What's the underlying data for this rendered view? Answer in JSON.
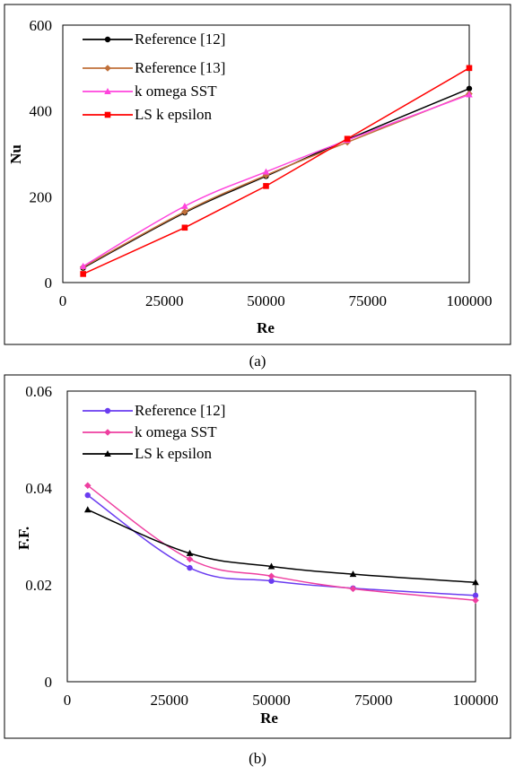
{
  "chart_data": [
    {
      "type": "line",
      "caption": "(a)",
      "xlabel": "Re",
      "ylabel": "Nu",
      "xlim": [
        0,
        100000
      ],
      "ylim": [
        0,
        600
      ],
      "xticks": [
        "0",
        "25000",
        "50000",
        "75000",
        "100000"
      ],
      "yticks": [
        "0",
        "200",
        "400",
        "600"
      ],
      "grid": false,
      "legend_position": "top-left",
      "series": [
        {
          "name": "Reference [12]",
          "color": "#000000",
          "marker": "circle",
          "x": [
            5000,
            30000,
            50000,
            70000,
            100000
          ],
          "y": [
            34,
            163,
            248,
            333,
            452
          ]
        },
        {
          "name": "Reference [13]",
          "color": "#c0703a",
          "marker": "diamond",
          "x": [
            5000,
            30000,
            50000,
            70000,
            100000
          ],
          "y": [
            36,
            165,
            250,
            327,
            440
          ]
        },
        {
          "name": "k omega SST",
          "color": "#ff44dd",
          "marker": "triangle",
          "x": [
            5000,
            30000,
            50000,
            70000,
            100000
          ],
          "y": [
            38,
            178,
            258,
            332,
            438
          ]
        },
        {
          "name": "LS k epsilon",
          "color": "#ff0000",
          "marker": "square",
          "x": [
            5000,
            30000,
            50000,
            70000,
            100000
          ],
          "y": [
            20,
            128,
            225,
            335,
            500
          ]
        }
      ]
    },
    {
      "type": "line",
      "caption": "(b)",
      "xlabel": "Re",
      "ylabel": "F.F.",
      "xlim": [
        0,
        100000
      ],
      "ylim": [
        0,
        0.06
      ],
      "xticks": [
        "0",
        "25000",
        "50000",
        "75000",
        "100000"
      ],
      "yticks": [
        "0",
        "0.02",
        "0.04",
        "0.06"
      ],
      "grid": false,
      "legend_position": "top-left",
      "series": [
        {
          "name": "Reference [12]",
          "color": "#6a3cf0",
          "marker": "circle",
          "x": [
            5000,
            30000,
            50000,
            70000,
            100000
          ],
          "y": [
            0.0385,
            0.0235,
            0.0208,
            0.0193,
            0.0178
          ]
        },
        {
          "name": "k omega SST",
          "color": "#ee3fa0",
          "marker": "diamond",
          "x": [
            5000,
            30000,
            50000,
            70000,
            100000
          ],
          "y": [
            0.0405,
            0.0253,
            0.0218,
            0.0192,
            0.0168
          ]
        },
        {
          "name": "LS k epsilon",
          "color": "#000000",
          "marker": "triangle",
          "x": [
            5000,
            30000,
            50000,
            70000,
            100000
          ],
          "y": [
            0.0355,
            0.0265,
            0.0238,
            0.0222,
            0.0205
          ]
        }
      ]
    }
  ]
}
